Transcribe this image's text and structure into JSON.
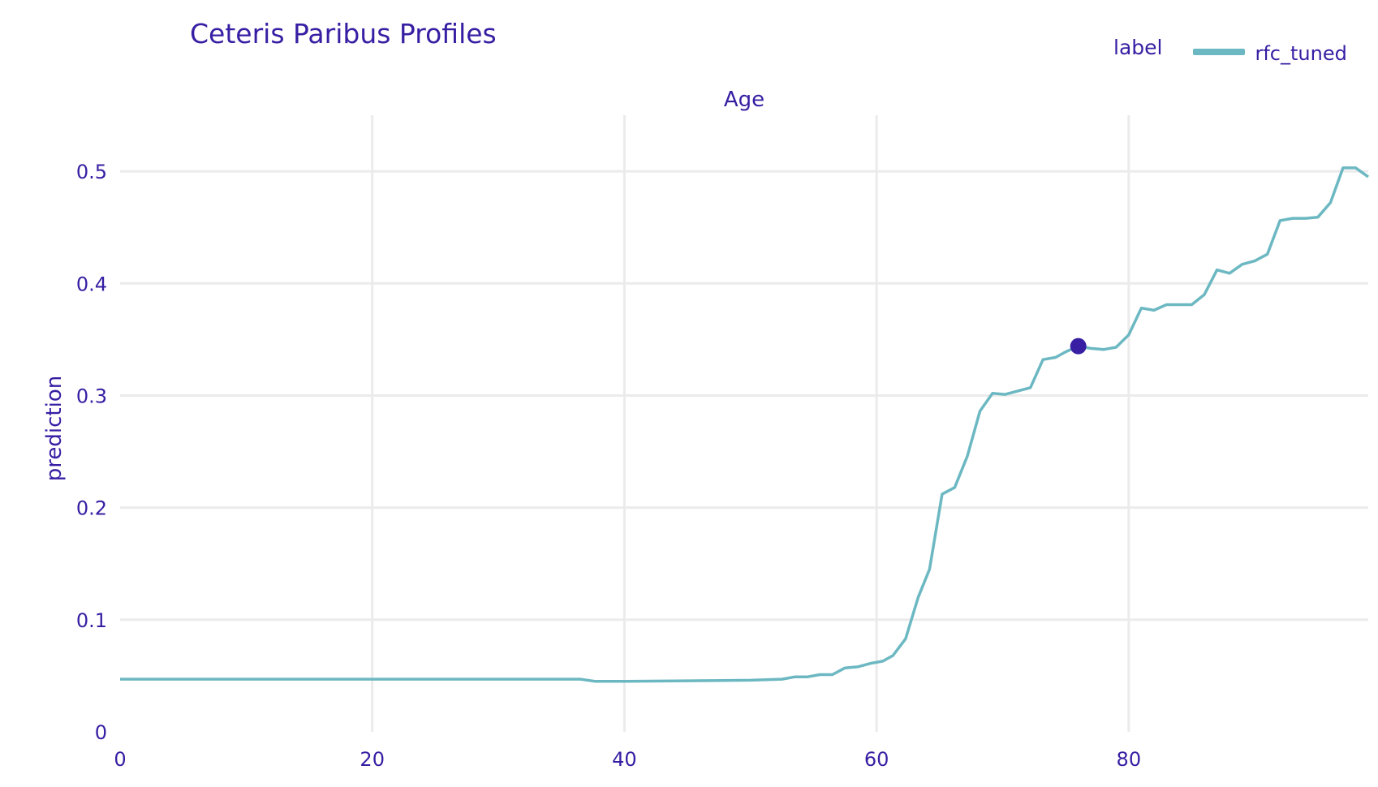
{
  "chart_data": {
    "type": "line",
    "title": "Ceteris Paribus Profiles",
    "subplot_title": "Age",
    "xlabel": "",
    "ylabel": "prediction",
    "xlim": [
      0,
      99
    ],
    "ylim": [
      0,
      0.55
    ],
    "x_ticks": [
      "0",
      "20",
      "40",
      "60",
      "80"
    ],
    "x_tick_values": [
      0,
      20,
      40,
      60,
      80
    ],
    "y_ticks": [
      "0",
      "0.1",
      "0.2",
      "0.3",
      "0.4",
      "0.5"
    ],
    "y_tick_values": [
      0,
      0.1,
      0.2,
      0.3,
      0.4,
      0.5
    ],
    "grid": true,
    "legend": {
      "title": "label",
      "position": "top-right"
    },
    "series": [
      {
        "name": "rfc_tuned",
        "color": "#6cb8c2",
        "x": [
          0,
          10,
          20,
          30,
          36.5,
          37.7,
          40,
          45,
          50,
          52.5,
          53.5,
          54.5,
          55.5,
          56.5,
          57.5,
          58.5,
          59.5,
          60.5,
          61.3,
          62.3,
          63.3,
          64.2,
          65.2,
          66.2,
          67.2,
          68.2,
          69.2,
          70.2,
          71.2,
          72.2,
          73.2,
          74.2,
          75,
          76,
          77,
          78,
          79,
          80,
          81,
          82,
          83,
          84,
          85,
          86,
          87,
          88,
          89,
          90,
          91,
          92,
          93,
          94,
          95,
          96,
          97,
          98,
          99
        ],
        "y": [
          0.047,
          0.047,
          0.047,
          0.047,
          0.047,
          0.045,
          0.045,
          0.0455,
          0.046,
          0.047,
          0.049,
          0.049,
          0.051,
          0.051,
          0.057,
          0.058,
          0.061,
          0.063,
          0.068,
          0.083,
          0.12,
          0.145,
          0.212,
          0.218,
          0.246,
          0.286,
          0.302,
          0.301,
          0.304,
          0.307,
          0.332,
          0.334,
          0.339,
          0.344,
          0.342,
          0.341,
          0.343,
          0.354,
          0.378,
          0.376,
          0.381,
          0.381,
          0.381,
          0.39,
          0.412,
          0.409,
          0.417,
          0.42,
          0.426,
          0.456,
          0.458,
          0.458,
          0.459,
          0.472,
          0.503,
          0.503,
          0.495
        ]
      }
    ],
    "observation": {
      "x": 76,
      "y": 0.344,
      "color": "#371ea3"
    }
  }
}
